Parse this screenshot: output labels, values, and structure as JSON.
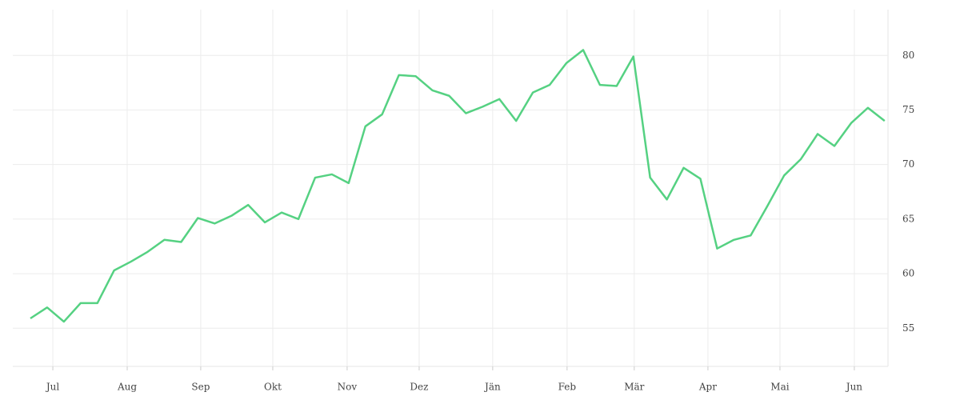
{
  "chart_data": {
    "type": "line",
    "series": [
      {
        "name": null,
        "color": "#55d182",
        "values": [
          55.9,
          56.9,
          55.6,
          57.3,
          57.3,
          60.3,
          61.1,
          62.0,
          63.1,
          62.9,
          65.1,
          64.6,
          65.3,
          66.3,
          64.7,
          65.6,
          65.0,
          68.8,
          69.1,
          68.3,
          73.5,
          74.6,
          78.2,
          78.1,
          76.8,
          76.3,
          74.7,
          75.3,
          76.0,
          74.0,
          76.6,
          77.3,
          79.3,
          80.5,
          77.3,
          77.2,
          79.9,
          68.8,
          66.8,
          69.7,
          68.7,
          62.3,
          63.1,
          63.5,
          66.2,
          69.0,
          70.5,
          72.8,
          71.7,
          73.8,
          75.2,
          74.0
        ]
      }
    ],
    "xlim": [
      -1.05,
      51.2
    ],
    "xticks": [
      {
        "value": 1.34,
        "label": "Jul"
      },
      {
        "value": 5.78,
        "label": "Aug"
      },
      {
        "value": 10.17,
        "label": "Sep"
      },
      {
        "value": 14.47,
        "label": "Okt"
      },
      {
        "value": 18.91,
        "label": "Nov"
      },
      {
        "value": 23.21,
        "label": "Dez"
      },
      {
        "value": 27.6,
        "label": "Jän"
      },
      {
        "value": 32.04,
        "label": "Feb"
      },
      {
        "value": 36.05,
        "label": "Mär"
      },
      {
        "value": 40.45,
        "label": "Apr"
      },
      {
        "value": 44.75,
        "label": "Mai"
      },
      {
        "value": 49.19,
        "label": "Jun"
      }
    ],
    "ylim": [
      51.5,
      84.2
    ],
    "yticks": [
      55,
      60,
      65,
      70,
      75,
      80
    ],
    "grid": true
  }
}
